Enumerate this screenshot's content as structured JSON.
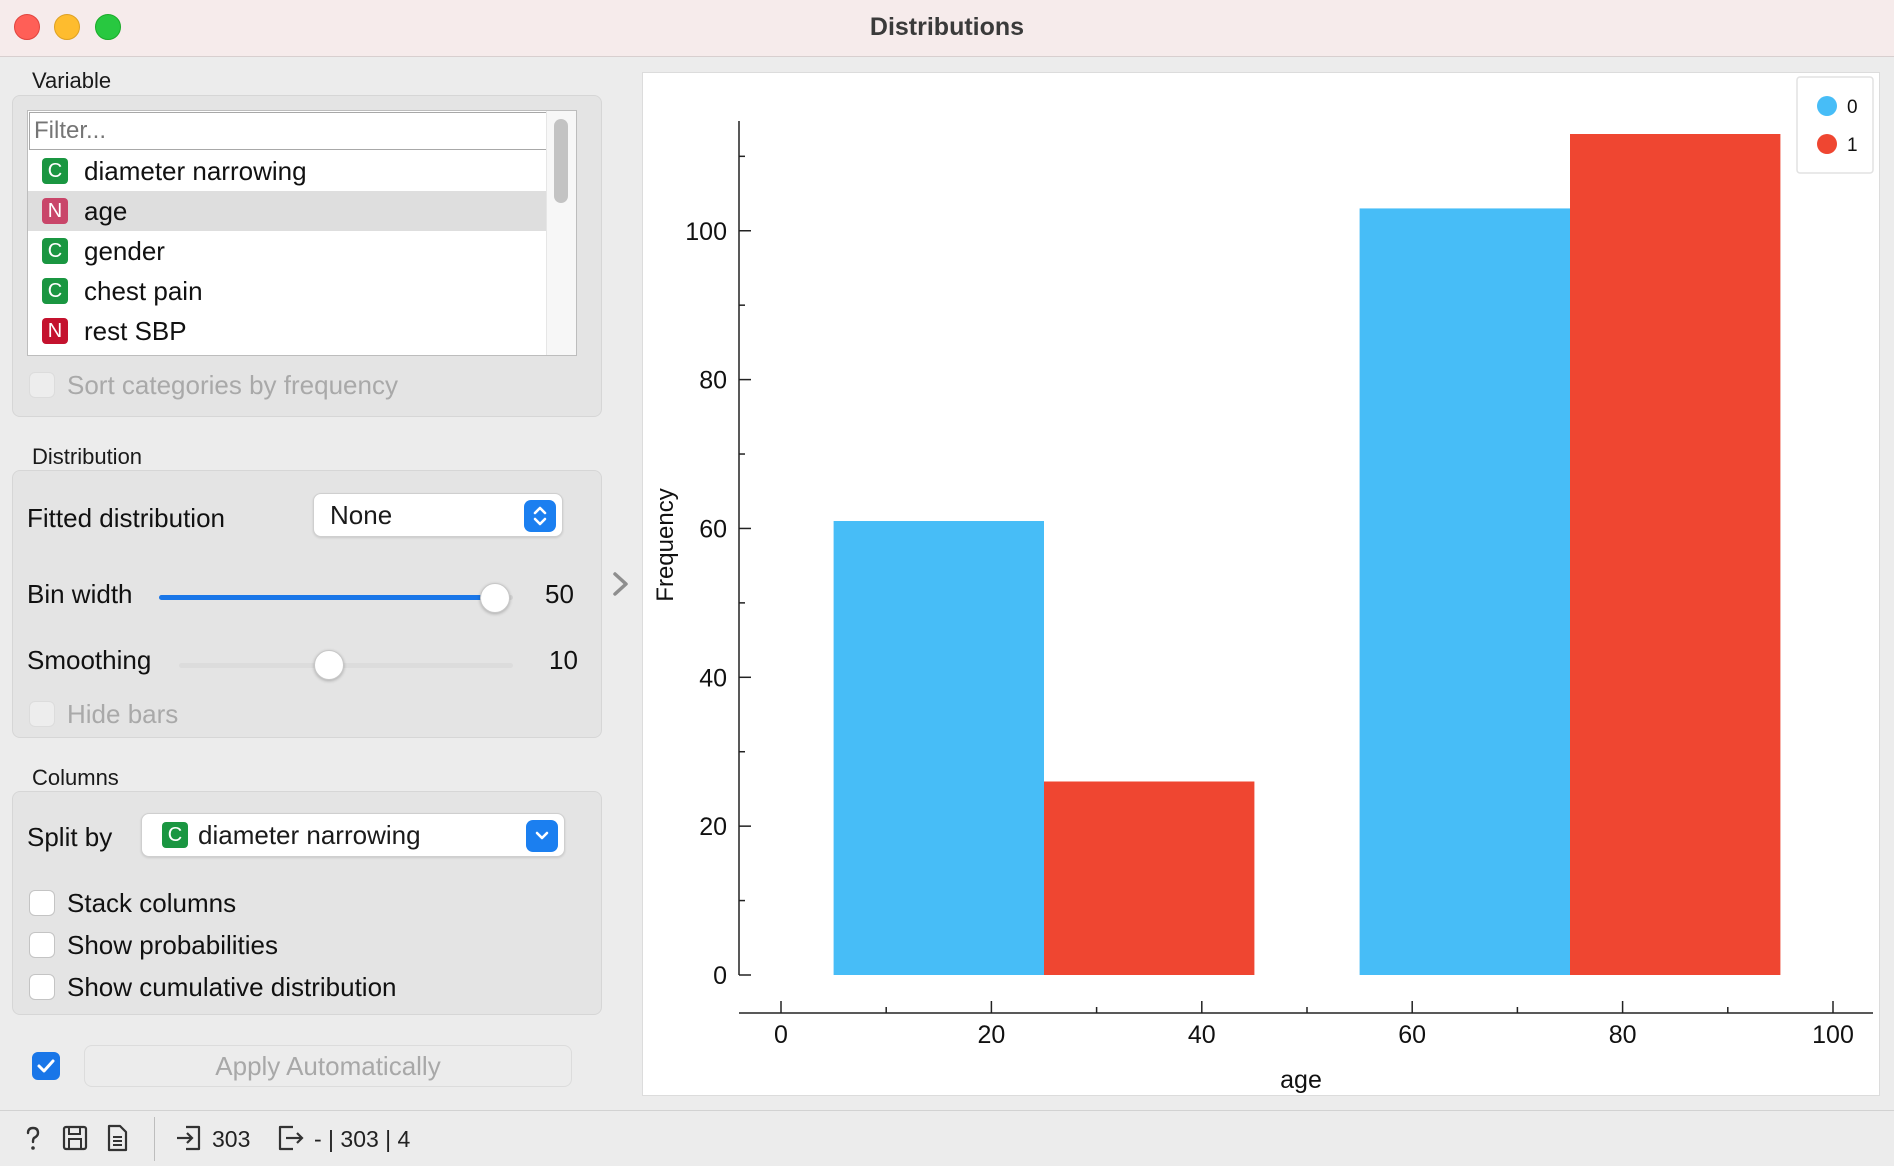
{
  "window": {
    "title": "Distributions"
  },
  "variable": {
    "section_label": "Variable",
    "filter_placeholder": "Filter...",
    "items": [
      {
        "badge": "C",
        "name": "diameter narrowing",
        "badge_color": "#1a9641"
      },
      {
        "badge": "N",
        "name": "age",
        "badge_color": "#c9466a"
      },
      {
        "badge": "C",
        "name": "gender",
        "badge_color": "#1a9641"
      },
      {
        "badge": "C",
        "name": "chest pain",
        "badge_color": "#1a9641"
      },
      {
        "badge": "N",
        "name": "rest SBP",
        "badge_color": "#c4122e"
      }
    ],
    "selected_index": 1,
    "sort_label": "Sort categories by frequency"
  },
  "distribution": {
    "section_label": "Distribution",
    "fitted_label": "Fitted distribution",
    "fitted_value": "None",
    "bin_width_label": "Bin width",
    "bin_width_value": "50",
    "bin_width_fraction": 0.95,
    "smoothing_label": "Smoothing",
    "smoothing_value": "10",
    "smoothing_fraction": 0.45,
    "hide_bars_label": "Hide bars"
  },
  "columns": {
    "section_label": "Columns",
    "split_by_label": "Split by",
    "split_by_badge": "C",
    "split_by_value": "diameter narrowing",
    "stack_label": "Stack columns",
    "probabilities_label": "Show probabilities",
    "cumulative_label": "Show cumulative distribution"
  },
  "apply": {
    "label": "Apply Automatically",
    "checked": true
  },
  "status": {
    "input_count": "303",
    "output_text": "- | 303 | 4"
  },
  "colors": {
    "series_0": "#47bdf7",
    "series_1": "#ef4631",
    "accent": "#1976e8"
  },
  "chart_data": {
    "type": "bar",
    "title": "",
    "xlabel": "age",
    "ylabel": "Frequency",
    "xlim": [
      0,
      100
    ],
    "ylim": [
      0,
      113
    ],
    "x_ticks": [
      0,
      20,
      40,
      60,
      80,
      100
    ],
    "y_ticks": [
      0,
      20,
      40,
      60,
      80,
      100
    ],
    "bin_width": 50,
    "bins": [
      {
        "x_start": 5,
        "x_end": 45
      },
      {
        "x_start": 55,
        "x_end": 95
      }
    ],
    "series": [
      {
        "name": "0",
        "values": [
          61,
          103
        ]
      },
      {
        "name": "1",
        "values": [
          26,
          113
        ]
      }
    ],
    "legend_position": "top-right"
  }
}
